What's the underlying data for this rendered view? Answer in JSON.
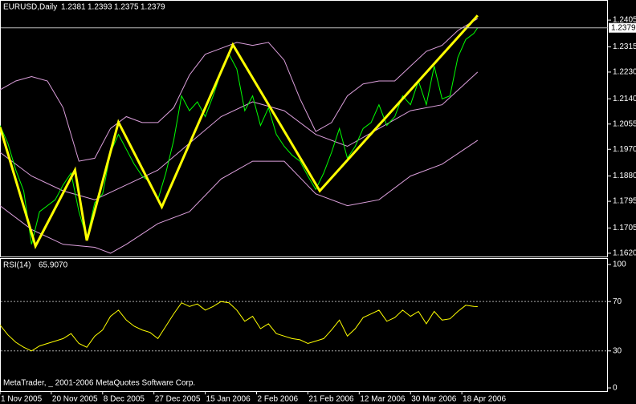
{
  "chart_data": [
    {
      "type": "line",
      "title": "EURUSD,Daily",
      "ohlc": [
        1.2381,
        1.2393,
        1.2375,
        1.2379
      ],
      "ylim": [
        1.1609,
        1.247
      ],
      "yticks": [
        {
          "value": 1.2405,
          "label": "1.2405"
        },
        {
          "value": 1.2315,
          "label": "1.2315"
        },
        {
          "value": 1.223,
          "label": "1.2230"
        },
        {
          "value": 1.214,
          "label": "1.2140"
        },
        {
          "value": 1.2055,
          "label": "1.2055"
        },
        {
          "value": 1.197,
          "label": "1.1970"
        },
        {
          "value": 1.188,
          "label": "1.1880"
        },
        {
          "value": 1.1795,
          "label": "1.1795"
        },
        {
          "value": 1.1705,
          "label": "1.1705"
        },
        {
          "value": 1.162,
          "label": "1.1620"
        }
      ],
      "series": [
        {
          "color": "#dda0dd",
          "x": [
            0,
            4,
            8,
            12,
            16,
            20,
            24,
            28,
            32,
            36,
            40,
            44,
            48,
            52,
            56,
            60,
            64,
            68,
            72,
            76,
            80,
            84,
            88,
            92,
            96,
            100,
            104,
            108,
            112,
            116,
            121
          ],
          "values": [
            1.217,
            1.22,
            1.2215,
            1.22,
            1.211,
            1.193,
            1.194,
            1.204,
            1.208,
            1.206,
            1.206,
            1.211,
            1.222,
            1.229,
            1.231,
            1.233,
            1.232,
            1.233,
            1.227,
            1.214,
            1.203,
            1.206,
            1.215,
            1.219,
            1.22,
            1.22,
            1.225,
            1.23,
            1.232,
            1.237,
            1.241
          ]
        },
        {
          "color": "#dda0dd",
          "x": [
            0,
            8,
            16,
            24,
            32,
            40,
            48,
            56,
            64,
            72,
            80,
            88,
            96,
            104,
            112,
            121
          ],
          "values": [
            1.196,
            1.188,
            1.183,
            1.18,
            1.185,
            1.19,
            1.199,
            1.208,
            1.213,
            1.21,
            1.202,
            1.198,
            1.204,
            1.21,
            1.212,
            1.223
          ]
        },
        {
          "color": "#dda0dd",
          "x": [
            0,
            8,
            16,
            24,
            28,
            32,
            40,
            48,
            56,
            64,
            72,
            80,
            88,
            96,
            104,
            112,
            121
          ],
          "values": [
            1.178,
            1.17,
            1.165,
            1.164,
            1.162,
            1.165,
            1.172,
            1.176,
            1.187,
            1.193,
            1.193,
            1.182,
            1.178,
            1.18,
            1.188,
            1.192,
            1.2
          ]
        },
        {
          "color": "#00ff00",
          "x": [
            0,
            2,
            4,
            6,
            8,
            10,
            12,
            14,
            16,
            18,
            20,
            22,
            24,
            26,
            28,
            30,
            32,
            34,
            36,
            38,
            40,
            42,
            44,
            46,
            48,
            50,
            52,
            54,
            56,
            58,
            60,
            62,
            64,
            66,
            68,
            70,
            72,
            74,
            76,
            78,
            80,
            82,
            84,
            86,
            88,
            90,
            92,
            94,
            96,
            98,
            100,
            102,
            104,
            106,
            108,
            110,
            112,
            114,
            116,
            118,
            120,
            121
          ],
          "values": [
            1.205,
            1.199,
            1.19,
            1.183,
            1.165,
            1.176,
            1.178,
            1.18,
            1.185,
            1.189,
            1.176,
            1.167,
            1.179,
            1.182,
            1.196,
            1.202,
            1.197,
            1.192,
            1.188,
            1.186,
            1.18,
            1.189,
            1.2,
            1.215,
            1.21,
            1.213,
            1.208,
            1.215,
            1.223,
            1.229,
            1.224,
            1.21,
            1.215,
            1.205,
            1.211,
            1.202,
            1.198,
            1.195,
            1.193,
            1.188,
            1.1835,
            1.189,
            1.196,
            1.204,
            1.194,
            1.198,
            1.204,
            1.206,
            1.212,
            1.205,
            1.208,
            1.215,
            1.212,
            1.22,
            1.212,
            1.225,
            1.214,
            1.215,
            1.228,
            1.234,
            1.236,
            1.2379
          ]
        },
        {
          "color": "#ffff00",
          "x": [
            0,
            9,
            19,
            22,
            30,
            41,
            59,
            81,
            121
          ],
          "values": [
            1.2045,
            1.1644,
            1.19,
            1.1663,
            1.2061,
            1.1776,
            1.2322,
            1.183,
            1.2421
          ]
        }
      ]
    },
    {
      "type": "line",
      "title": "RSI(14)",
      "current": {
        "value": 65.907,
        "label": "65.9070"
      },
      "ylim": [
        -2.6,
        104.5
      ],
      "yticks": [
        100,
        70,
        30,
        0
      ],
      "levels": [
        70,
        30
      ],
      "xlim": [
        0,
        154
      ],
      "xticks": [
        {
          "value": 0,
          "label": "1 Nov 2005"
        },
        {
          "value": 13,
          "label": "20 Nov 2005"
        },
        {
          "value": 26,
          "label": "8 Dec 2005"
        },
        {
          "value": 39,
          "label": "27 Dec 2005"
        },
        {
          "value": 52,
          "label": "15 Jan 2006"
        },
        {
          "value": 65,
          "label": "2 Feb 2006"
        },
        {
          "value": 78,
          "label": "21 Feb 2006"
        },
        {
          "value": 91,
          "label": "12 Mar 2006"
        },
        {
          "value": 104,
          "label": "30 Mar 2006"
        },
        {
          "value": 117,
          "label": "18 Apr 2006"
        }
      ],
      "footer": "MetaTrader, _ 2001-2006 MetaQuotes Software Corp.",
      "series": [
        {
          "color": "#ffff00",
          "x": [
            0,
            2,
            4,
            6,
            8,
            10,
            12,
            14,
            16,
            18,
            20,
            22,
            24,
            26,
            28,
            30,
            32,
            34,
            36,
            38,
            40,
            42,
            44,
            46,
            48,
            50,
            52,
            54,
            56,
            58,
            60,
            62,
            64,
            66,
            68,
            70,
            72,
            74,
            76,
            78,
            80,
            82,
            84,
            86,
            88,
            90,
            92,
            94,
            96,
            98,
            100,
            102,
            104,
            106,
            108,
            110,
            112,
            114,
            116,
            118,
            120,
            121
          ],
          "values": [
            51,
            43,
            37,
            33,
            30,
            34,
            36,
            38,
            40,
            44,
            36,
            33,
            42,
            47,
            58,
            63,
            55,
            50,
            47,
            45,
            40,
            50,
            60,
            69,
            66,
            68,
            63,
            66,
            70,
            69,
            63,
            54,
            58,
            48,
            52,
            44,
            42,
            40,
            39,
            36,
            38,
            40,
            47,
            55,
            42,
            48,
            57,
            60,
            63,
            54,
            57,
            63,
            58,
            62,
            52,
            62,
            55,
            56,
            62,
            67,
            66,
            65.907
          ]
        }
      ]
    }
  ]
}
